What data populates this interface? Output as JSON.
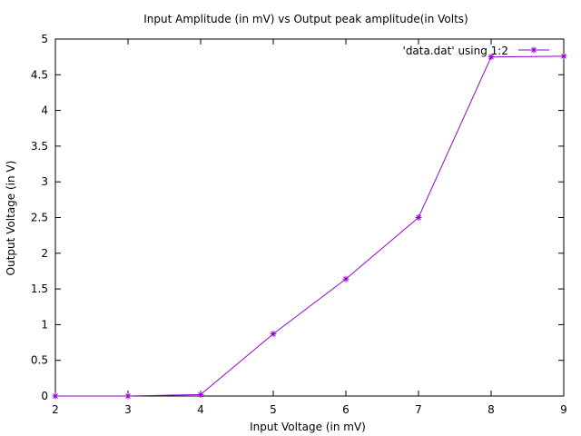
{
  "chart_data": {
    "type": "line",
    "title": "Input Amplitude (in mV) vs Output peak amplitude(in Volts)",
    "xlabel": "Input Voltage (in mV)",
    "ylabel": "Output Voltage (in V)",
    "xlim": [
      2,
      9
    ],
    "ylim": [
      0,
      5
    ],
    "x_ticks": [
      "2",
      "3",
      "4",
      "5",
      "6",
      "7",
      "8",
      "9"
    ],
    "y_ticks": [
      "0",
      "0.5",
      "1",
      "1.5",
      "2",
      "2.5",
      "3",
      "3.5",
      "4",
      "4.5",
      "5"
    ],
    "grid": false,
    "legend_position": "top-right",
    "series": [
      {
        "name": "'data.dat' using 1:2",
        "color": "#9400d3",
        "marker": "plus-cross",
        "x": [
          2,
          3,
          4,
          5,
          6,
          7,
          8,
          9
        ],
        "y": [
          0,
          0,
          0.02,
          0.87,
          1.64,
          2.5,
          4.75,
          4.76
        ]
      }
    ]
  }
}
